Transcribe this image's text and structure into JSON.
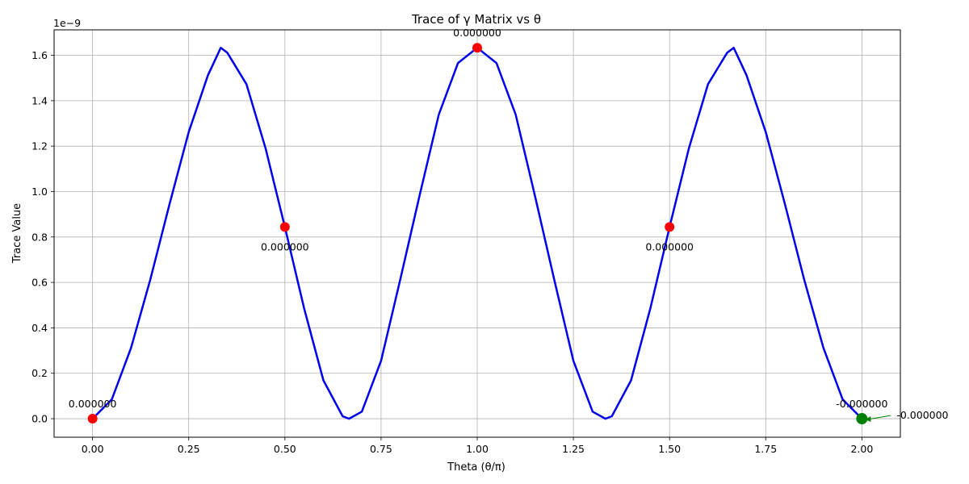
{
  "chart_data": {
    "type": "line",
    "title": "Trace of γ Matrix vs θ",
    "xlabel": "Theta (θ/π)",
    "ylabel": "Trace Value",
    "y_offset_label": "1e−9",
    "y_scale": 1e-09,
    "xlim": [
      -0.1,
      2.1
    ],
    "ylim": [
      -0.0815,
      1.712
    ],
    "grid": true,
    "x_ticks": [
      {
        "value": 0.0,
        "label": "0.00"
      },
      {
        "value": 0.25,
        "label": "0.25"
      },
      {
        "value": 0.5,
        "label": "0.50"
      },
      {
        "value": 0.75,
        "label": "0.75"
      },
      {
        "value": 1.0,
        "label": "1.00"
      },
      {
        "value": 1.25,
        "label": "1.25"
      },
      {
        "value": 1.5,
        "label": "1.50"
      },
      {
        "value": 1.75,
        "label": "1.75"
      },
      {
        "value": 2.0,
        "label": "2.00"
      }
    ],
    "y_ticks": [
      {
        "value": 0.0,
        "label": "0.0"
      },
      {
        "value": 0.2,
        "label": "0.2"
      },
      {
        "value": 0.4,
        "label": "0.4"
      },
      {
        "value": 0.6,
        "label": "0.6"
      },
      {
        "value": 0.8,
        "label": "0.8"
      },
      {
        "value": 1.0,
        "label": "1.0"
      },
      {
        "value": 1.2,
        "label": "1.2"
      },
      {
        "value": 1.4,
        "label": "1.4"
      },
      {
        "value": 1.6,
        "label": "1.6"
      }
    ],
    "series": [
      {
        "color": "#0000ee",
        "x": [
          0.0,
          0.05,
          0.1,
          0.15,
          0.2,
          0.25,
          0.3,
          0.3333,
          0.35,
          0.4,
          0.45,
          0.5,
          0.55,
          0.6,
          0.65,
          0.6667,
          0.7,
          0.75,
          0.8,
          0.85,
          0.9,
          0.95,
          1.0,
          1.05,
          1.1,
          1.15,
          1.2,
          1.25,
          1.3,
          1.3333,
          1.35,
          1.4,
          1.45,
          1.5,
          1.55,
          1.6,
          1.65,
          1.6667,
          1.7,
          1.75,
          1.8,
          1.85,
          1.9,
          1.95,
          2.0
        ],
        "y": [
          0.0,
          0.085,
          0.312,
          0.612,
          0.944,
          1.262,
          1.512,
          1.633,
          1.612,
          1.473,
          1.189,
          0.844,
          0.486,
          0.169,
          0.011,
          0.0,
          0.031,
          0.255,
          0.613,
          0.981,
          1.339,
          1.566,
          1.633,
          1.566,
          1.339,
          0.981,
          0.613,
          0.255,
          0.031,
          0.0,
          0.011,
          0.169,
          0.486,
          0.844,
          1.189,
          1.473,
          1.612,
          1.633,
          1.512,
          1.262,
          0.944,
          0.612,
          0.312,
          0.085,
          0.0
        ]
      }
    ],
    "markers": [
      {
        "x": 0.0,
        "y": 0.0,
        "color": "#ff0000",
        "label": "0.000000",
        "label_side": "above"
      },
      {
        "x": 0.5,
        "y": 0.844,
        "color": "#ff0000",
        "label": "0.000000",
        "label_side": "below"
      },
      {
        "x": 1.0,
        "y": 1.633,
        "color": "#ff0000",
        "label": "0.000000",
        "label_side": "above"
      },
      {
        "x": 1.5,
        "y": 0.844,
        "color": "#ff0000",
        "label": "0.000000",
        "label_side": "below"
      },
      {
        "x": 2.0,
        "y": 0.0,
        "color": "#008000",
        "label": "-0.000000",
        "label_side": "above"
      }
    ],
    "arrow_annotation": {
      "x": 2.0,
      "y": 0.0,
      "color": "#008000",
      "label": "-0.000000"
    }
  }
}
